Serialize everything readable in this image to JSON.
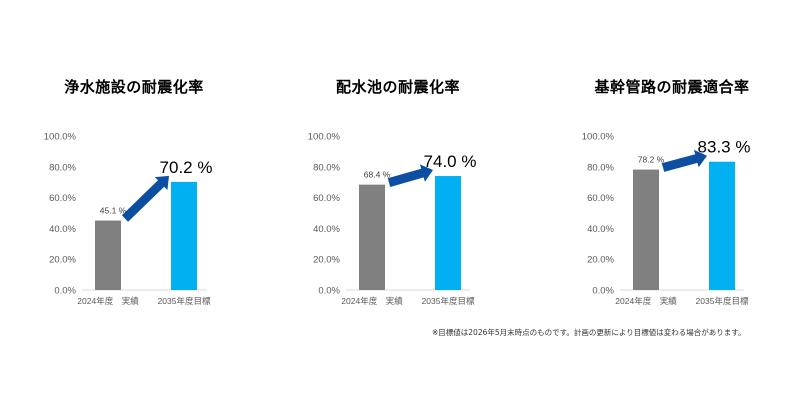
{
  "footnote": "※目標値は2026年5月末時点のものです。計画の更新により目標値は変わる場合があります。",
  "colors": {
    "actual": "#808080",
    "target": "#00b0f0",
    "arrow": "#0b4ea2",
    "axis": "#d9d9d9",
    "tick_text": "#595959"
  },
  "chart_data": [
    {
      "type": "bar",
      "title": "浄水施設の耐震化率",
      "categories": [
        "2024年度　実績",
        "2035年度目標"
      ],
      "values": [
        45.1,
        70.2
      ],
      "value_labels": [
        "45.1 %",
        "70.2 %"
      ],
      "yticks": [
        "0.0%",
        "20.0%",
        "40.0%",
        "60.0%",
        "80.0%",
        "100.0%"
      ],
      "ylim": [
        0,
        100
      ],
      "xlabel": "",
      "ylabel": "",
      "grid": false
    },
    {
      "type": "bar",
      "title": "配水池の耐震化率",
      "categories": [
        "2024年度　実績",
        "2035年度目標"
      ],
      "values": [
        68.4,
        74.0
      ],
      "value_labels": [
        "68.4 %",
        "74.0 %"
      ],
      "yticks": [
        "0.0%",
        "20.0%",
        "40.0%",
        "60.0%",
        "80.0%",
        "100.0%"
      ],
      "ylim": [
        0,
        100
      ],
      "xlabel": "",
      "ylabel": "",
      "grid": false
    },
    {
      "type": "bar",
      "title": "基幹管路の耐震適合率",
      "categories": [
        "2024年度　実績",
        "2035年度目標"
      ],
      "values": [
        78.2,
        83.3
      ],
      "value_labels": [
        "78.2 %",
        "83.3 %"
      ],
      "yticks": [
        "0.0%",
        "20.0%",
        "40.0%",
        "60.0%",
        "80.0%",
        "100.0%"
      ],
      "ylim": [
        0,
        100
      ],
      "xlabel": "",
      "ylabel": "",
      "grid": false
    }
  ]
}
